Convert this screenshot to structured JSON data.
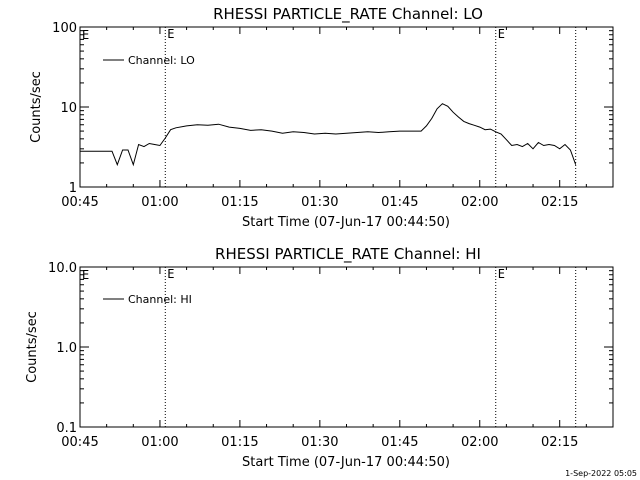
{
  "chart_data": [
    {
      "type": "line",
      "title": "RHESSI PARTICLE_RATE Channel: LO",
      "xlabel": "Start Time (07-Jun-17 00:44:50)",
      "ylabel": "Counts/sec",
      "y_scale": "log",
      "ylim": [
        1,
        100
      ],
      "xlim": [
        "00:45",
        "02:25"
      ],
      "x_tick_labels": [
        "00:45",
        "01:00",
        "01:15",
        "01:30",
        "01:45",
        "02:00",
        "02:15"
      ],
      "y_tick_labels": [
        "1",
        "10",
        "100"
      ],
      "y_tick_values": [
        1,
        10,
        100
      ],
      "legend": "top-left",
      "grid": false,
      "markers": [
        {
          "x": "01:01",
          "label": "E"
        },
        {
          "x": "02:03",
          "label": "E"
        },
        {
          "x": "02:18",
          "label": ""
        }
      ],
      "corner_label": "E",
      "series": [
        {
          "name": "Channel: LO",
          "x": [
            "00:45",
            "00:51",
            "00:52",
            "00:53",
            "00:54",
            "00:55",
            "00:56",
            "00:57",
            "00:58",
            "00:59",
            "01:00",
            "01:01",
            "01:02",
            "01:03",
            "01:05",
            "01:07",
            "01:09",
            "01:11",
            "01:13",
            "01:15",
            "01:17",
            "01:19",
            "01:21",
            "01:23",
            "01:25",
            "01:27",
            "01:29",
            "01:31",
            "01:33",
            "01:35",
            "01:37",
            "01:39",
            "01:41",
            "01:43",
            "01:45",
            "01:47",
            "01:49",
            "01:50",
            "01:51",
            "01:52",
            "01:53",
            "01:54",
            "01:55",
            "01:56",
            "01:57",
            "01:58",
            "01:59",
            "02:00",
            "02:01",
            "02:02",
            "02:03",
            "02:04",
            "02:05",
            "02:06",
            "02:07",
            "02:08",
            "02:09",
            "02:10",
            "02:11",
            "02:12",
            "02:13",
            "02:14",
            "02:15",
            "02:16",
            "02:17",
            "02:18"
          ],
          "y": [
            2.8,
            2.8,
            1.9,
            2.9,
            2.9,
            1.9,
            3.4,
            3.2,
            3.5,
            3.4,
            3.3,
            4.1,
            5.2,
            5.5,
            5.8,
            6.0,
            5.9,
            6.1,
            5.6,
            5.4,
            5.1,
            5.2,
            5.0,
            4.7,
            4.9,
            4.8,
            4.6,
            4.7,
            4.6,
            4.7,
            4.8,
            4.9,
            4.8,
            4.9,
            5.0,
            5.0,
            5.0,
            5.8,
            7.2,
            9.5,
            11.0,
            10.2,
            8.6,
            7.5,
            6.6,
            6.2,
            5.9,
            5.6,
            5.2,
            5.3,
            4.9,
            4.6,
            3.9,
            3.3,
            3.4,
            3.2,
            3.5,
            3.0,
            3.6,
            3.3,
            3.4,
            3.3,
            3.0,
            3.4,
            2.9,
            1.9
          ]
        }
      ]
    },
    {
      "type": "line",
      "title": "RHESSI PARTICLE_RATE Channel: HI",
      "xlabel": "Start Time (07-Jun-17 00:44:50)",
      "ylabel": "Counts/sec",
      "y_scale": "log",
      "ylim": [
        0.1,
        10
      ],
      "xlim": [
        "00:45",
        "02:25"
      ],
      "x_tick_labels": [
        "00:45",
        "01:00",
        "01:15",
        "01:30",
        "01:45",
        "02:00",
        "02:15"
      ],
      "y_tick_labels": [
        "0.1",
        "1.0",
        "10.0"
      ],
      "y_tick_values": [
        0.1,
        1,
        10
      ],
      "legend": "top-left",
      "grid": false,
      "markers": [
        {
          "x": "01:01",
          "label": "E"
        },
        {
          "x": "02:03",
          "label": "E"
        },
        {
          "x": "02:18",
          "label": ""
        }
      ],
      "corner_label": "E",
      "series": [
        {
          "name": "Channel: HI",
          "x": [],
          "y": []
        }
      ]
    }
  ],
  "footer": {
    "timestamp": "1-Sep-2022 05:05"
  }
}
